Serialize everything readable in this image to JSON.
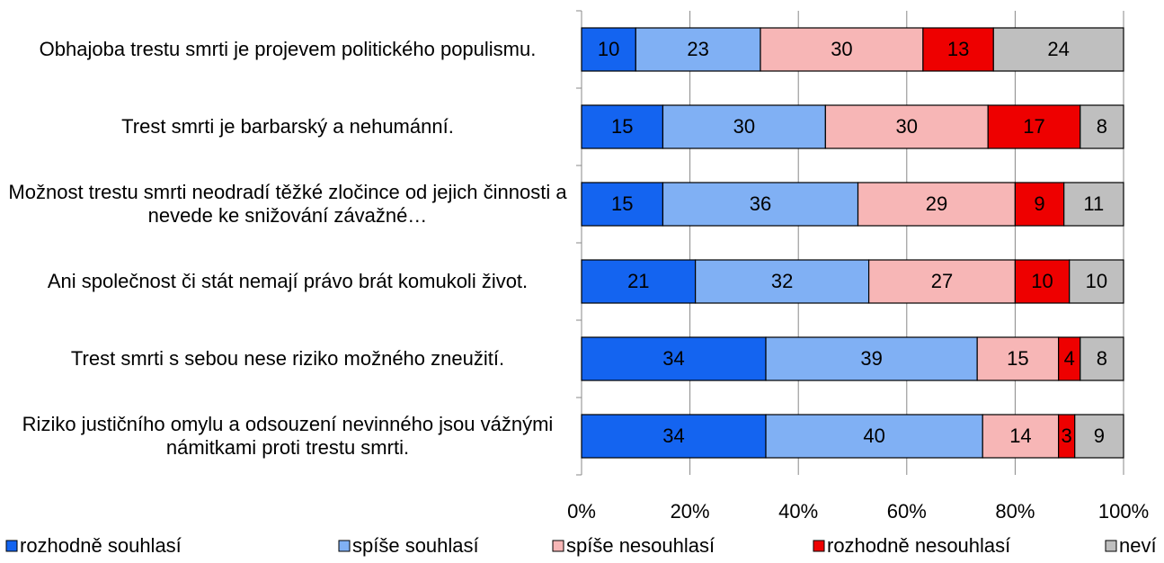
{
  "chart_data": {
    "type": "bar",
    "orientation": "horizontal",
    "stacked": true,
    "categories": [
      "Obhajoba trestu smrti je projevem politického populismu.",
      "Trest smrti je barbarský a nehumánní.",
      "Možnost trestu smrti neodradí těžké zločince od jejich činnosti a nevede ke snižování závažné…",
      "Ani společnost či stát nemají právo brát komukoli život.",
      "Trest smrti s sebou nese riziko možného zneužití.",
      "Riziko justičního omylu a odsouzení nevinného jsou vážnými námitkami proti trestu smrti."
    ],
    "series": [
      {
        "name": "rozhodně souhlasí",
        "color": "#1464f0",
        "values": [
          10,
          15,
          15,
          21,
          34,
          34
        ]
      },
      {
        "name": "spíše souhlasí",
        "color": "#80b0f4",
        "values": [
          23,
          30,
          36,
          32,
          39,
          40
        ]
      },
      {
        "name": "spíše nesouhlasí",
        "color": "#f7b6b6",
        "values": [
          30,
          30,
          29,
          27,
          15,
          14
        ]
      },
      {
        "name": "rozhodně nesouhlasí",
        "color": "#ee0000",
        "values": [
          13,
          17,
          9,
          10,
          4,
          3
        ]
      },
      {
        "name": "neví",
        "color": "#bfbfbf",
        "values": [
          24,
          8,
          11,
          10,
          8,
          9
        ]
      }
    ],
    "xlim": [
      0,
      100
    ],
    "xticks": [
      {
        "value": 0,
        "label": "0%"
      },
      {
        "value": 20,
        "label": "20%"
      },
      {
        "value": 40,
        "label": "40%"
      },
      {
        "value": 60,
        "label": "60%"
      },
      {
        "value": 80,
        "label": "80%"
      },
      {
        "value": 100,
        "label": "100%"
      }
    ],
    "grid": true,
    "legend": "bottom"
  }
}
